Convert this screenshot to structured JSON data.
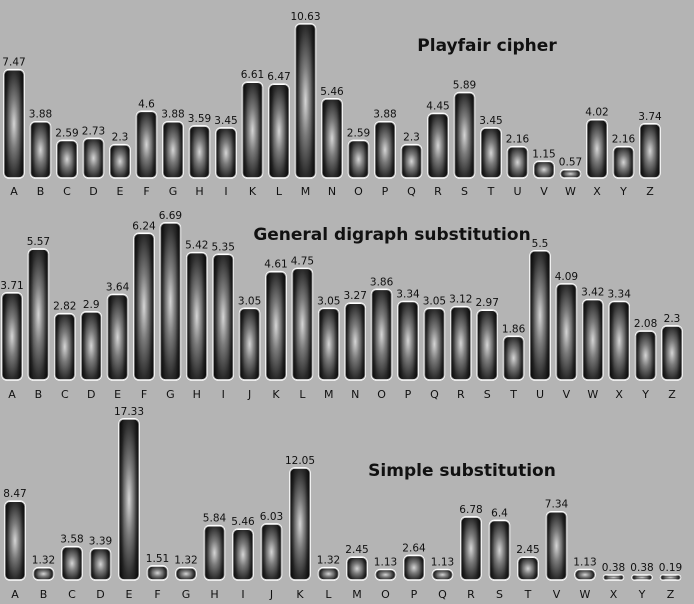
{
  "chart_data": [
    {
      "type": "bar",
      "title": "Playfair cipher",
      "categories": [
        "A",
        "B",
        "C",
        "D",
        "E",
        "F",
        "G",
        "H",
        "I",
        "K",
        "L",
        "M",
        "N",
        "O",
        "P",
        "Q",
        "R",
        "S",
        "T",
        "U",
        "V",
        "W",
        "X",
        "Y",
        "Z"
      ],
      "values": [
        7.47,
        3.88,
        2.59,
        2.73,
        2.3,
        4.6,
        3.88,
        3.59,
        3.45,
        6.61,
        6.47,
        10.63,
        5.46,
        2.59,
        3.88,
        2.3,
        4.45,
        5.89,
        3.45,
        2.16,
        1.15,
        0.57,
        4.02,
        2.16,
        3.74
      ],
      "value_labels": [
        "7.47",
        "3.88",
        "2.59",
        "2.73",
        "2.3",
        "4.6",
        "3.88",
        "3.59",
        "3.45",
        "6.61",
        "6.47",
        "10.63",
        "5.46",
        "2.59",
        "3.88",
        "2.3",
        "4.45",
        "5.89",
        "3.45",
        "2.16",
        "1.15",
        "0.57",
        "4.02",
        "2.16",
        "3.74"
      ],
      "xlabel": "",
      "ylabel": "",
      "grid": false,
      "legend": "none"
    },
    {
      "type": "bar",
      "title": "General digraph substitution",
      "categories": [
        "A",
        "B",
        "C",
        "D",
        "E",
        "F",
        "G",
        "H",
        "I",
        "J",
        "K",
        "L",
        "M",
        "N",
        "O",
        "P",
        "Q",
        "R",
        "S",
        "T",
        "U",
        "V",
        "W",
        "X",
        "Y",
        "Z"
      ],
      "values": [
        3.71,
        5.57,
        2.82,
        2.9,
        3.64,
        6.24,
        6.69,
        5.42,
        5.35,
        3.05,
        4.61,
        4.75,
        3.05,
        3.27,
        3.86,
        3.34,
        3.05,
        3.12,
        2.97,
        1.86,
        5.5,
        4.09,
        3.42,
        3.34,
        2.08,
        2.3
      ],
      "value_labels": [
        "3.71",
        "5.57",
        "2.82",
        "2.9",
        "3.64",
        "6.24",
        "6.69",
        "5.42",
        "5.35",
        "3.05",
        "4.61",
        "4.75",
        "3.05",
        "3.27",
        "3.86",
        "3.34",
        "3.05",
        "3.12",
        "2.97",
        "1.86",
        "5.5",
        "4.09",
        "3.42",
        "3.34",
        "2.08",
        "2.3"
      ],
      "xlabel": "",
      "ylabel": "",
      "grid": false,
      "legend": "none"
    },
    {
      "type": "bar",
      "title": "Simple substitution",
      "categories": [
        "A",
        "B",
        "C",
        "D",
        "E",
        "F",
        "G",
        "H",
        "I",
        "J",
        "K",
        "L",
        "M",
        "O",
        "P",
        "Q",
        "R",
        "S",
        "T",
        "V",
        "W",
        "X",
        "Y",
        "Z"
      ],
      "values": [
        8.47,
        1.32,
        3.58,
        3.39,
        17.33,
        1.51,
        1.32,
        5.84,
        5.46,
        6.03,
        12.05,
        1.32,
        2.45,
        1.13,
        2.64,
        1.13,
        6.78,
        6.4,
        2.45,
        7.34,
        1.13,
        0.38,
        0.38,
        0.19
      ],
      "value_labels": [
        "8.47",
        "1.32",
        "3.58",
        "3.39",
        "17.33",
        "1.51",
        "1.32",
        "5.84",
        "5.46",
        "6.03",
        "12.05",
        "1.32",
        "2.45",
        "1.13",
        "2.64",
        "1.13",
        "6.78",
        "6.4",
        "2.45",
        "7.34",
        "1.13",
        "0.38",
        "0.38",
        "0.19"
      ],
      "xlabel": "",
      "ylabel": "",
      "grid": false,
      "legend": "none"
    }
  ],
  "colors": {
    "background": "#b4b4b4",
    "bar_dark": "#1a1a1a",
    "bar_light": "#d8d8d8",
    "text": "#111111"
  }
}
